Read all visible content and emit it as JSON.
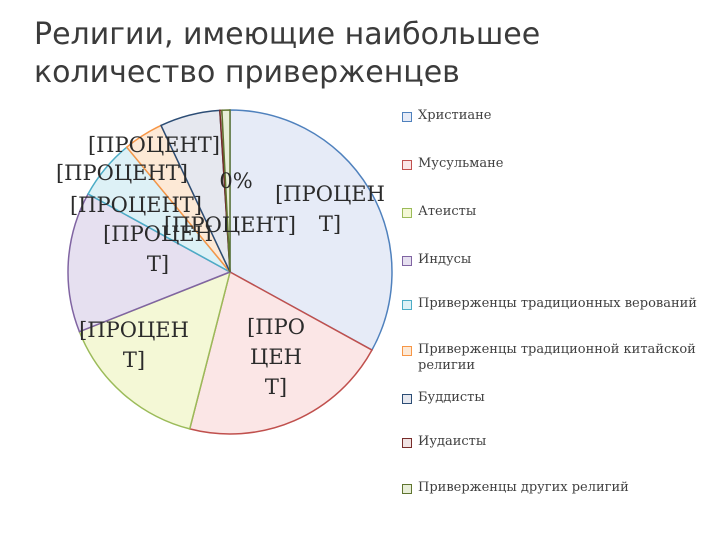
{
  "title": "Религии, имеющие наибольшее количество приверженцев",
  "chart_data": {
    "type": "pie",
    "categories": [
      "Христиане",
      "Мусульмане",
      "Атеисты",
      "Индусы",
      "Приверженцы традиционных верований",
      "Приверженцы традиционной китайской религии",
      "Буддисты",
      "Иудаисты",
      "Приверженцы других религий"
    ],
    "values": [
      33,
      21,
      15,
      14,
      6,
      4,
      6,
      0.2,
      0.8
    ],
    "colors": [
      "#4f81bd",
      "#c0504d",
      "#9bbb59",
      "#8064a2",
      "#4bacc6",
      "#f79646",
      "#2c4d75",
      "#772c2a",
      "#5f7530"
    ],
    "fills": [
      "#e6ebf7",
      "#fbe6e6",
      "#f4f8d6",
      "#e6e0f0",
      "#ddf1f6",
      "#fde9d6",
      "#e6e8ef",
      "#f1e3e3",
      "#e8eed8"
    ],
    "data_labels": [
      "[ПРОЦЕН Т]",
      "[ПРО ЦЕН Т]",
      "[ПРОЦЕН Т]",
      "[ПРОЦЕН Т]",
      "[ПРОЦЕНТ]",
      "[ПРОЦЕНТ]",
      "[ПРОЦЕНТ]",
      "0%",
      "[ПРОЦЕНТ]"
    ],
    "legend_position": "right"
  }
}
